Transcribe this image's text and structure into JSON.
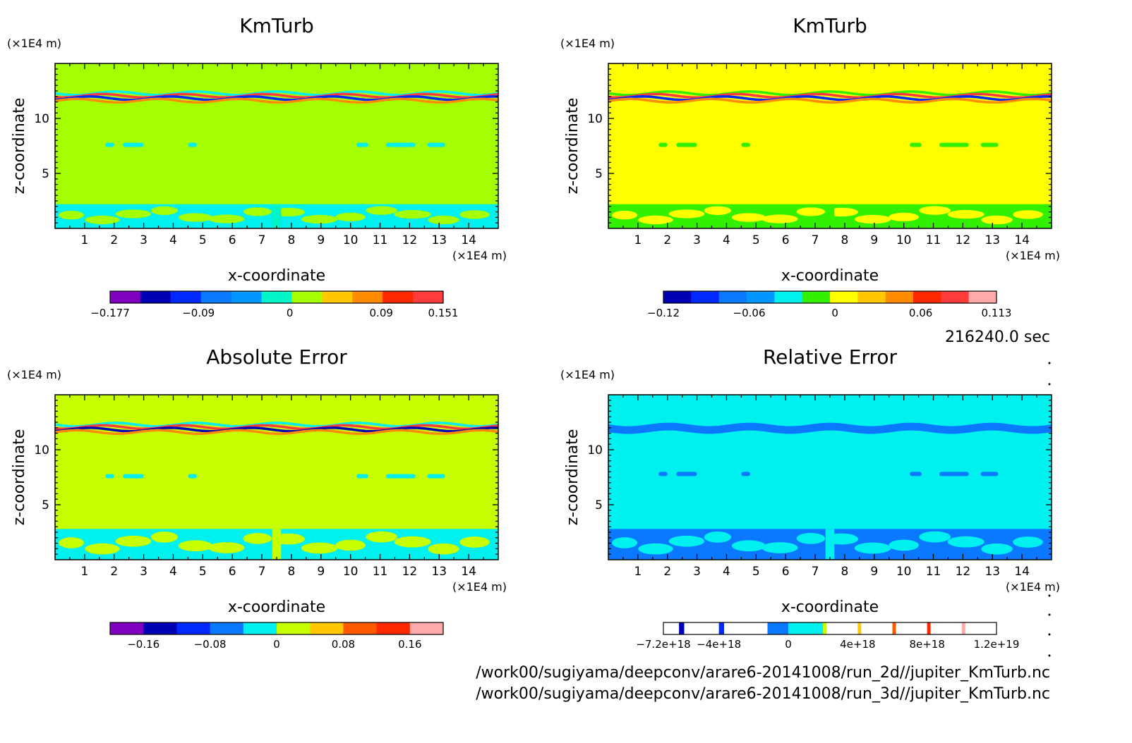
{
  "time_label": "216240.0 sec",
  "file_paths": [
    "/work00/sugiyama/deepconv/arare6-20141008/run_2d//jupiter_KmTurb.nc",
    "/work00/sugiyama/deepconv/arare6-20141008/run_3d//jupiter_KmTurb.nc"
  ],
  "colors": {
    "purple": "#7f00bf",
    "navy": "#0000b4",
    "blue": "#0028ff",
    "mid_blue": "#0a78ff",
    "sky": "#0096ff",
    "cyan": "#00f0f0",
    "teal": "#00f5c8",
    "lime": "#a5ff00",
    "chartreuse": "#c8ff00",
    "yellow": "#ffff00",
    "green": "#32f000",
    "gold": "#ffc800",
    "orange": "#ff8c00",
    "dark_orange": "#ff5a00",
    "red": "#ff2800",
    "light_red": "#ff3c3c",
    "pink": "#ffaaaa"
  },
  "chart_data": [
    {
      "type": "heatmap",
      "title": "KmTurb",
      "xlabel": "x-coordinate",
      "ylabel": "z-coordinate",
      "x_unit": "(×1E4 m)",
      "y_unit": "(×1E4 m)",
      "xlim": [
        0,
        15
      ],
      "ylim": [
        0,
        15
      ],
      "x_ticks": [
        "1",
        "2",
        "3",
        "4",
        "5",
        "6",
        "7",
        "8",
        "9",
        "10",
        "11",
        "12",
        "13",
        "14"
      ],
      "y_ticks": [
        "5",
        "10"
      ],
      "background_color": "#a5ff00",
      "features": {
        "top_band_z": [
          11.5,
          12.4
        ],
        "top_band_colors": [
          "#00f0f0",
          "#ff3c3c",
          "#0028ff",
          "#ff8c00"
        ],
        "mid_spots_z": 7.6,
        "mid_spots_color": "#00f0f0",
        "bottom_band_z": [
          0,
          2.2
        ],
        "bottom_band_color": "#00f0f0",
        "bottom_blob_color": "#00f5c8"
      },
      "colorbar": {
        "colors": [
          "#7f00bf",
          "#0000b4",
          "#0028ff",
          "#0a78ff",
          "#0096ff",
          "#00f5c8",
          "#a5ff00",
          "#ffc800",
          "#ff8c00",
          "#ff2800",
          "#ff3c3c"
        ],
        "labels": [
          {
            "text": "−0.177",
            "value": -0.177
          },
          {
            "text": "−0.09",
            "value": -0.09
          },
          {
            "text": "0",
            "value": 0
          },
          {
            "text": "0.09",
            "value": 0.09
          },
          {
            "text": "0.151",
            "value": 0.151
          }
        ],
        "range": [
          -0.177,
          0.151
        ]
      }
    },
    {
      "type": "heatmap",
      "title": "KmTurb",
      "xlabel": "x-coordinate",
      "ylabel": "z-coordinate",
      "x_unit": "(×1E4 m)",
      "y_unit": "(×1E4 m)",
      "xlim": [
        0,
        15
      ],
      "ylim": [
        0,
        15
      ],
      "x_ticks": [
        "1",
        "2",
        "3",
        "4",
        "5",
        "6",
        "7",
        "8",
        "9",
        "10",
        "11",
        "12",
        "13",
        "14"
      ],
      "y_ticks": [
        "5",
        "10"
      ],
      "background_color": "#ffff00",
      "features": {
        "top_band_z": [
          11.5,
          12.4
        ],
        "top_band_colors": [
          "#32f000",
          "#ff3c3c",
          "#0028ff",
          "#ff8c00"
        ],
        "mid_spots_z": 7.6,
        "mid_spots_color": "#32f000",
        "bottom_band_z": [
          0,
          2.2
        ],
        "bottom_band_color": "#32f000",
        "bottom_blob_color": "#32f000"
      },
      "colorbar": {
        "colors": [
          "#0000b4",
          "#0028ff",
          "#0a78ff",
          "#0096ff",
          "#00f0f0",
          "#32f000",
          "#ffff00",
          "#ffc800",
          "#ff8c00",
          "#ff2800",
          "#ff3c3c",
          "#ffaaaa"
        ],
        "labels": [
          {
            "text": "−0.12",
            "value": -0.12
          },
          {
            "text": "−0.06",
            "value": -0.06
          },
          {
            "text": "0",
            "value": 0
          },
          {
            "text": "0.06",
            "value": 0.06
          },
          {
            "text": "0.113",
            "value": 0.113
          }
        ],
        "range": [
          -0.12,
          0.113
        ]
      }
    },
    {
      "type": "heatmap",
      "title": "Absolute Error",
      "xlabel": "x-coordinate",
      "ylabel": "z-coordinate",
      "x_unit": "(×1E4 m)",
      "y_unit": "(×1E4 m)",
      "xlim": [
        0,
        15
      ],
      "ylim": [
        0,
        15
      ],
      "x_ticks": [
        "1",
        "2",
        "3",
        "4",
        "5",
        "6",
        "7",
        "8",
        "9",
        "10",
        "11",
        "12",
        "13",
        "14"
      ],
      "y_ticks": [
        "5",
        "10"
      ],
      "background_color": "#c8ff00",
      "features": {
        "top_band_z": [
          11.5,
          12.4
        ],
        "top_band_colors": [
          "#00f0f0",
          "#ff3c3c",
          "#0000b4",
          "#ff8c00"
        ],
        "mid_spots_z": 7.6,
        "mid_spots_color": "#00f0f0",
        "bottom_band_z": [
          0,
          2.8
        ],
        "bottom_band_color": "#00f0f0",
        "bottom_blob_color": "#c8ff00"
      },
      "colorbar": {
        "colors": [
          "#7f00bf",
          "#0000b4",
          "#0028ff",
          "#0a78ff",
          "#00f0f0",
          "#c8ff00",
          "#ffc800",
          "#ff5a00",
          "#ff2800",
          "#ffaaaa"
        ],
        "labels": [
          {
            "text": "−0.16",
            "value": -0.16
          },
          {
            "text": "−0.08",
            "value": -0.08
          },
          {
            "text": "0",
            "value": 0
          },
          {
            "text": "0.08",
            "value": 0.08
          },
          {
            "text": "0.16",
            "value": 0.16
          }
        ],
        "range": [
          -0.2,
          0.2
        ]
      }
    },
    {
      "type": "heatmap",
      "title": "Relative Error",
      "xlabel": "x-coordinate",
      "ylabel": "z-coordinate",
      "x_unit": "(×1E4 m)",
      "y_unit": "(×1E4 m)",
      "xlim": [
        0,
        15
      ],
      "ylim": [
        0,
        15
      ],
      "x_ticks": [
        "1",
        "2",
        "3",
        "4",
        "5",
        "6",
        "7",
        "8",
        "9",
        "10",
        "11",
        "12",
        "13",
        "14"
      ],
      "y_ticks": [
        "5",
        "10"
      ],
      "background_color": "#00f0f0",
      "features": {
        "top_band_z": [
          11.6,
          12.3
        ],
        "top_band_colors": [
          "#0a78ff"
        ],
        "mid_spots_z": 7.8,
        "mid_spots_color": "#0a78ff",
        "bottom_band_z": [
          0,
          2.8
        ],
        "bottom_band_color": "#0a78ff",
        "bottom_blob_color": "#00f0f0"
      },
      "colorbar": {
        "style": "sparse",
        "segments": [
          {
            "from": -7.2e+18,
            "to": 1.2e+19,
            "color": "#ffffff"
          },
          {
            "from": -6.3e+18,
            "to": -6e+18,
            "color": "#0000b4"
          },
          {
            "from": -4e+18,
            "to": -3.7e+18,
            "color": "#0028ff"
          },
          {
            "from": -1.2e+18,
            "to": 0,
            "color": "#0a78ff"
          },
          {
            "from": 0,
            "to": 2e+18,
            "color": "#00f0f0"
          },
          {
            "from": 2e+18,
            "to": 2.2e+18,
            "color": "#c8ff00"
          },
          {
            "from": 4e+18,
            "to": 4.2e+18,
            "color": "#ffc800"
          },
          {
            "from": 6e+18,
            "to": 6.2e+18,
            "color": "#ff5a00"
          },
          {
            "from": 8e+18,
            "to": 8.2e+18,
            "color": "#ff2800"
          },
          {
            "from": 1e+19,
            "to": 1.02e+19,
            "color": "#ffaaaa"
          }
        ],
        "labels": [
          {
            "text": "−7.2e+18",
            "value": -7.2e+18
          },
          {
            "text": "−4e+18",
            "value": -4e+18
          },
          {
            "text": "0",
            "value": 0
          },
          {
            "text": "4e+18",
            "value": 4e+18
          },
          {
            "text": "8e+18",
            "value": 8e+18
          },
          {
            "text": "1.2e+19",
            "value": 1.2e+19
          }
        ],
        "range": [
          -7.2e+18,
          1.2e+19
        ]
      }
    }
  ]
}
